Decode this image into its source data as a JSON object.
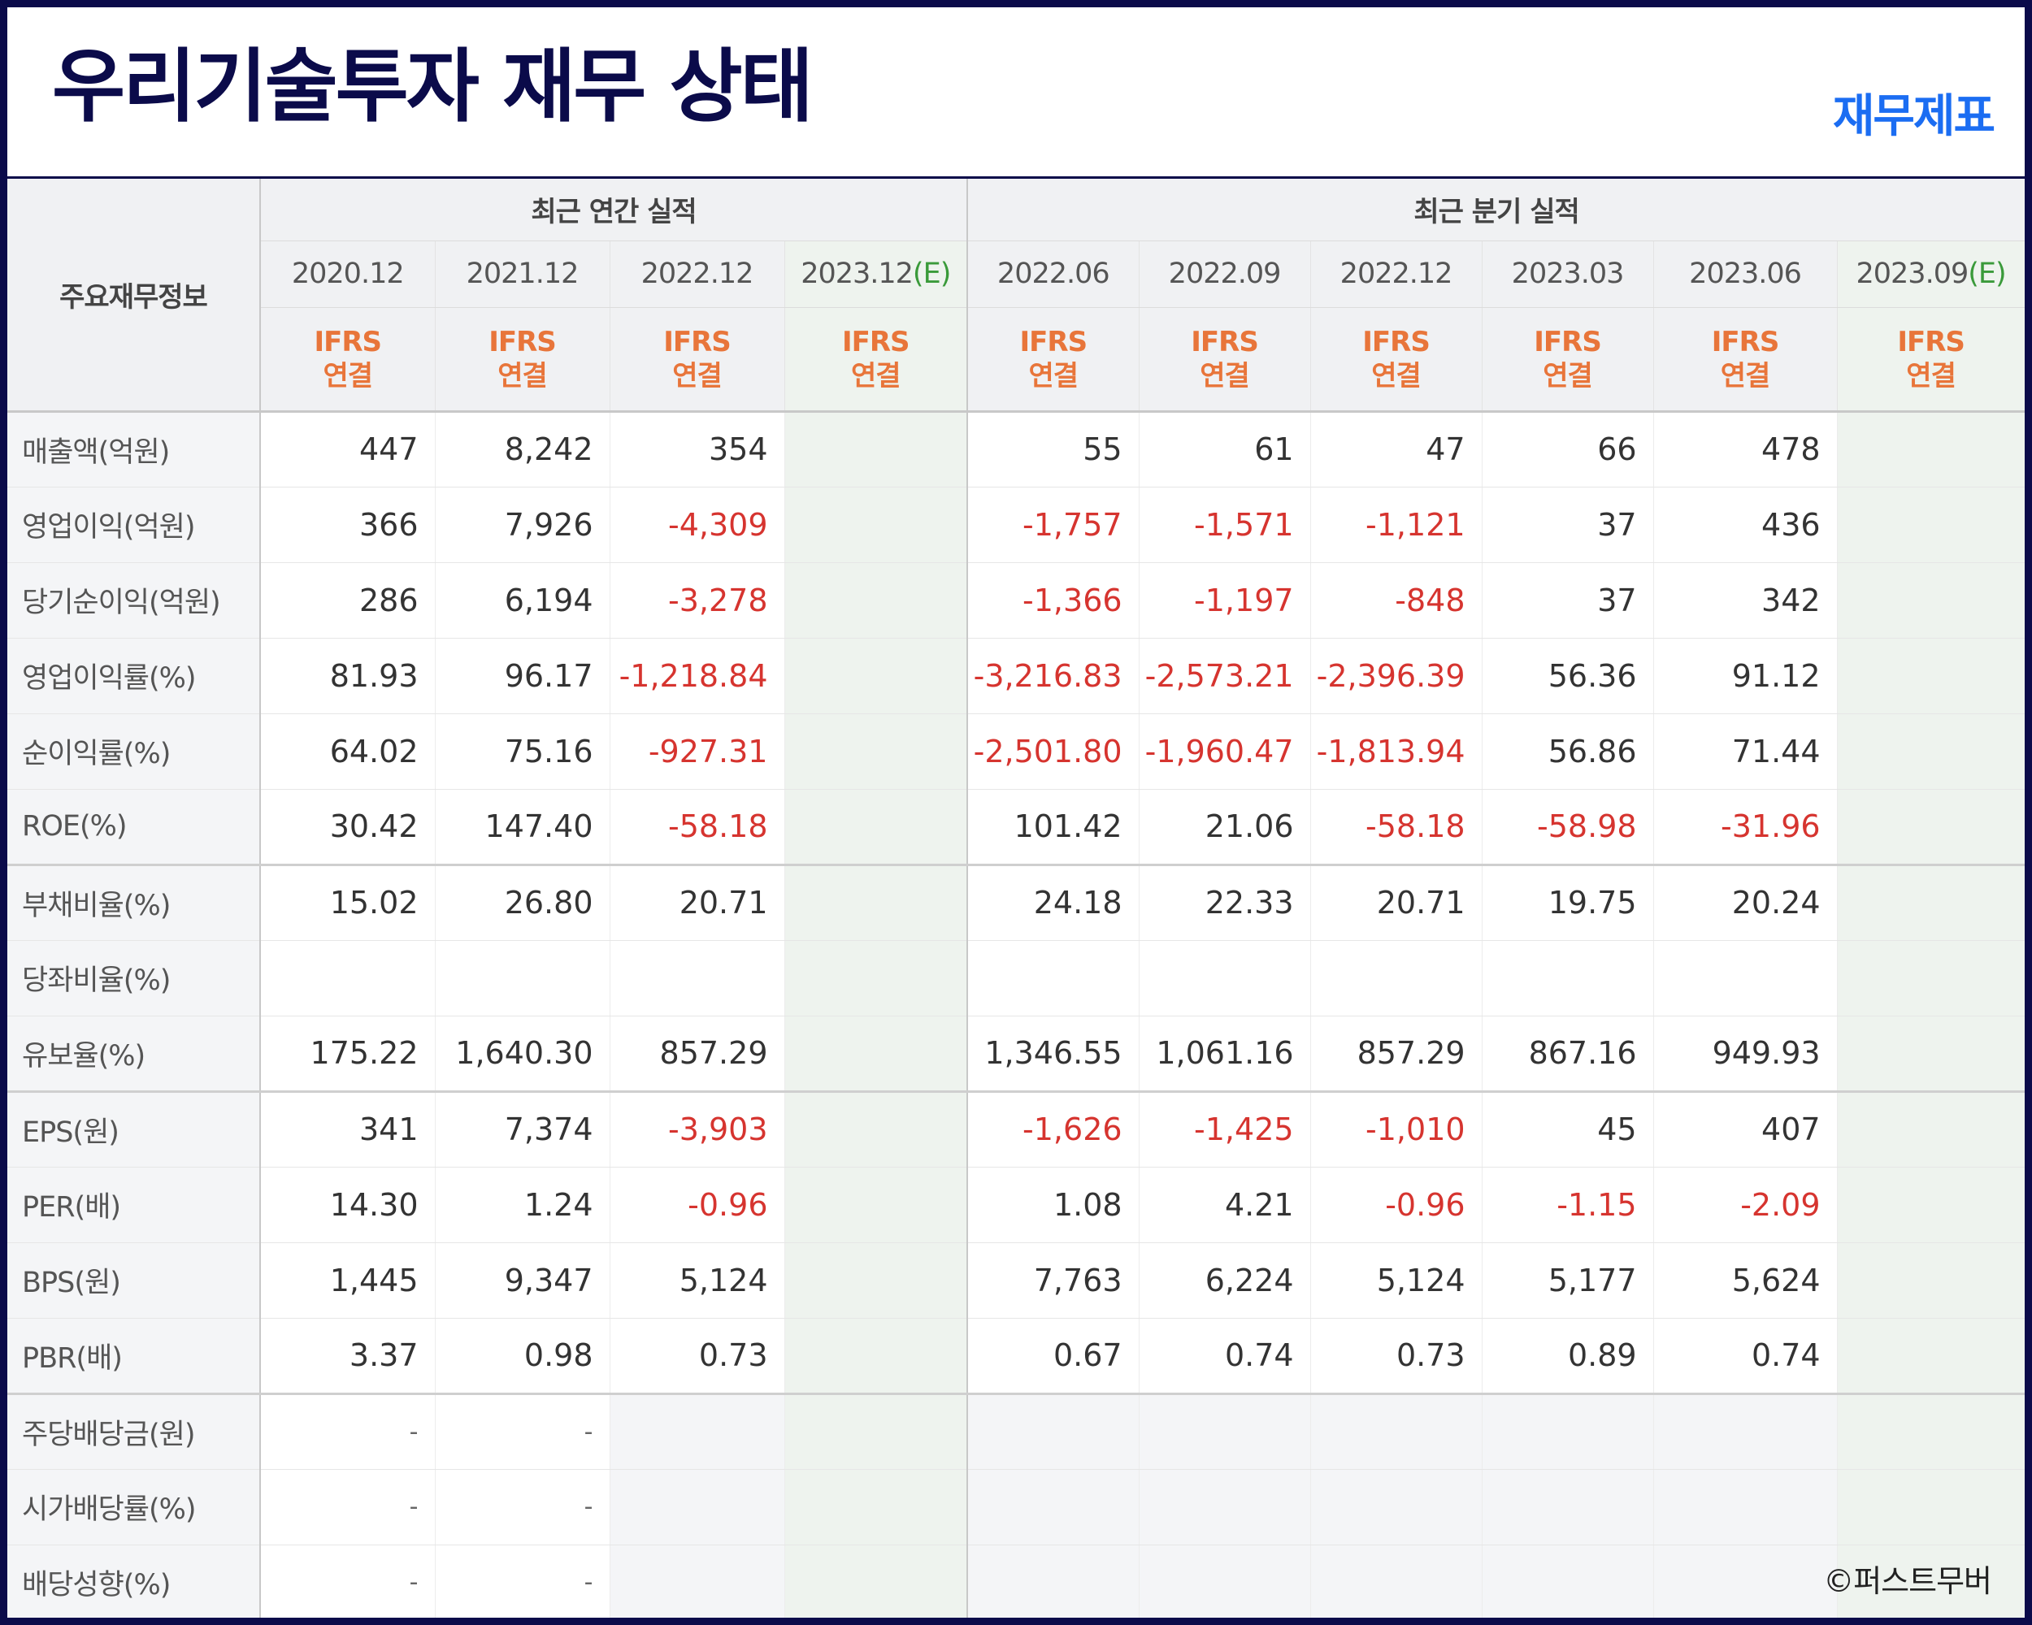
{
  "title": "우리기술투자 재무 상태",
  "badge": "재무제표",
  "copyright": "©퍼스트무버",
  "table": {
    "corner_label": "주요재무정보",
    "groups": [
      "최근 연간 실적",
      "최근 분기 실적"
    ],
    "periods": [
      "2020.12",
      "2021.12",
      "2022.12",
      "2023.12",
      "2022.06",
      "2022.09",
      "2022.12",
      "2023.03",
      "2023.06",
      "2023.09"
    ],
    "estimate_mark": "(E)",
    "ifrs_line1": "IFRS",
    "ifrs_line2": "연결",
    "rows": [
      {
        "label": "매출액(억원)",
        "values": [
          "447",
          "8,242",
          "354",
          "",
          "55",
          "61",
          "47",
          "66",
          "478",
          ""
        ]
      },
      {
        "label": "영업이익(억원)",
        "values": [
          "366",
          "7,926",
          "-4,309",
          "",
          "-1,757",
          "-1,571",
          "-1,121",
          "37",
          "436",
          ""
        ]
      },
      {
        "label": "당기순이익(억원)",
        "values": [
          "286",
          "6,194",
          "-3,278",
          "",
          "-1,366",
          "-1,197",
          "-848",
          "37",
          "342",
          ""
        ]
      },
      {
        "label": "영업이익률(%)",
        "values": [
          "81.93",
          "96.17",
          "-1,218.84",
          "",
          "-3,216.83",
          "-2,573.21",
          "-2,396.39",
          "56.36",
          "91.12",
          ""
        ]
      },
      {
        "label": "순이익률(%)",
        "values": [
          "64.02",
          "75.16",
          "-927.31",
          "",
          "-2,501.80",
          "-1,960.47",
          "-1,813.94",
          "56.86",
          "71.44",
          ""
        ]
      },
      {
        "label": "ROE(%)",
        "values": [
          "30.42",
          "147.40",
          "-58.18",
          "",
          "101.42",
          "21.06",
          "-58.18",
          "-58.98",
          "-31.96",
          ""
        ]
      },
      {
        "label": "부채비율(%)",
        "values": [
          "15.02",
          "26.80",
          "20.71",
          "",
          "24.18",
          "22.33",
          "20.71",
          "19.75",
          "20.24",
          ""
        ]
      },
      {
        "label": "당좌비율(%)",
        "values": [
          "",
          "",
          "",
          "",
          "",
          "",
          "",
          "",
          "",
          ""
        ]
      },
      {
        "label": "유보율(%)",
        "values": [
          "175.22",
          "1,640.30",
          "857.29",
          "",
          "1,346.55",
          "1,061.16",
          "857.29",
          "867.16",
          "949.93",
          ""
        ]
      },
      {
        "label": "EPS(원)",
        "values": [
          "341",
          "7,374",
          "-3,903",
          "",
          "-1,626",
          "-1,425",
          "-1,010",
          "45",
          "407",
          ""
        ]
      },
      {
        "label": "PER(배)",
        "values": [
          "14.30",
          "1.24",
          "-0.96",
          "",
          "1.08",
          "4.21",
          "-0.96",
          "-1.15",
          "-2.09",
          ""
        ]
      },
      {
        "label": "BPS(원)",
        "values": [
          "1,445",
          "9,347",
          "5,124",
          "",
          "7,763",
          "6,224",
          "5,124",
          "5,177",
          "5,624",
          ""
        ]
      },
      {
        "label": "PBR(배)",
        "values": [
          "3.37",
          "0.98",
          "0.73",
          "",
          "0.67",
          "0.74",
          "0.73",
          "0.89",
          "0.74",
          ""
        ]
      },
      {
        "label": "주당배당금(원)",
        "values": [
          "-",
          "-",
          "",
          "",
          "",
          "",
          "",
          "",
          "",
          ""
        ]
      },
      {
        "label": "시가배당률(%)",
        "values": [
          "-",
          "-",
          "",
          "",
          "",
          "",
          "",
          "",
          "",
          ""
        ]
      },
      {
        "label": "배당성향(%)",
        "values": [
          "-",
          "-",
          "",
          "",
          "",
          "",
          "",
          "",
          "",
          ""
        ]
      }
    ]
  },
  "colors": {
    "title": "#0b0b4a",
    "badge": "#1b6df2",
    "ifrs": "#e8753a",
    "negative": "#d6342f",
    "estimate_mark": "#3a9a3a"
  }
}
